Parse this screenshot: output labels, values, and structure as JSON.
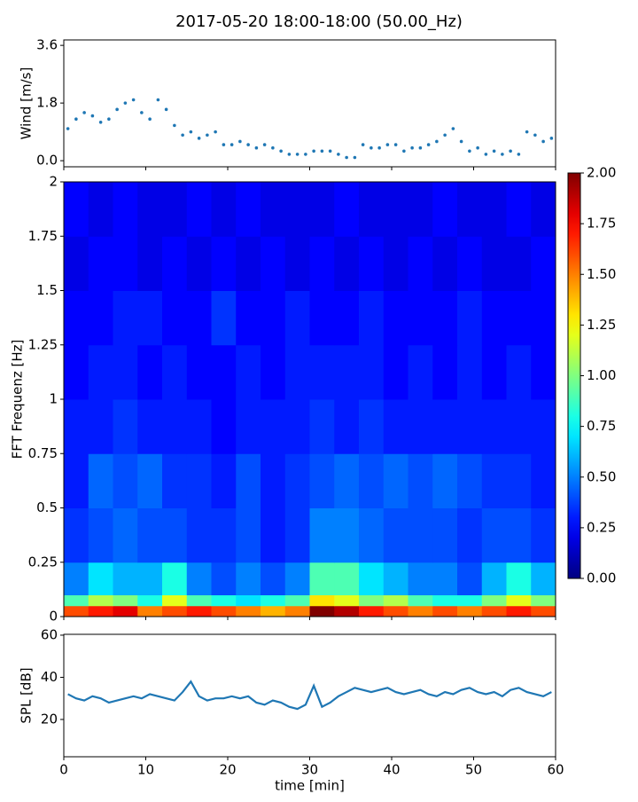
{
  "title": "2017-05-20 18:00-18:00 (50.00_Hz)",
  "chart_data": [
    {
      "type": "scatter",
      "ylabel": "Wind [m/s]",
      "color": "#1f77b4",
      "x": [
        0.5,
        1.5,
        2.5,
        3.5,
        4.5,
        5.5,
        6.5,
        7.5,
        8.5,
        9.5,
        10.5,
        11.5,
        12.5,
        13.5,
        14.5,
        15.5,
        16.5,
        17.5,
        18.5,
        19.5,
        20.5,
        21.5,
        22.5,
        23.5,
        24.5,
        25.5,
        26.5,
        27.5,
        28.5,
        29.5,
        30.5,
        31.5,
        32.5,
        33.5,
        34.5,
        35.5,
        36.5,
        37.5,
        38.5,
        39.5,
        40.5,
        41.5,
        42.5,
        43.5,
        44.5,
        45.5,
        46.5,
        47.5,
        48.5,
        49.5,
        50.5,
        51.5,
        52.5,
        53.5,
        54.5,
        55.5,
        56.5,
        57.5,
        58.5,
        59.5
      ],
      "values": [
        1.0,
        1.3,
        1.5,
        1.4,
        1.2,
        1.3,
        1.6,
        1.8,
        1.9,
        1.5,
        1.3,
        1.9,
        1.6,
        1.1,
        0.8,
        0.9,
        0.7,
        0.8,
        0.9,
        0.5,
        0.5,
        0.6,
        0.5,
        0.4,
        0.5,
        0.4,
        0.3,
        0.2,
        0.2,
        0.2,
        0.3,
        0.3,
        0.3,
        0.2,
        0.1,
        0.1,
        0.5,
        0.4,
        0.4,
        0.5,
        0.5,
        0.3,
        0.4,
        0.4,
        0.5,
        0.6,
        0.8,
        1.0,
        0.6,
        0.3,
        0.4,
        0.2,
        0.3,
        0.2,
        0.3,
        0.2,
        0.9,
        0.8,
        0.6,
        0.7
      ],
      "xlim": [
        0,
        60
      ],
      "xticks": [
        0,
        10,
        20,
        30,
        40,
        50,
        60
      ],
      "ylim": [
        -0.19,
        3.77
      ],
      "yticks": [
        {
          "value": 0,
          "label": "0.0"
        },
        1.8,
        3.6
      ]
    },
    {
      "type": "heatmap",
      "ylabel": "FFT Frequenz [Hz]",
      "colormap": "jet",
      "xbins": [
        0,
        3,
        6,
        9,
        12,
        15,
        18,
        21,
        24,
        27,
        30,
        33,
        36,
        39,
        42,
        45,
        48,
        51,
        54,
        57,
        60
      ],
      "ybins": [
        0,
        0.05,
        0.1,
        0.25,
        0.5,
        0.75,
        1,
        1.25,
        1.5,
        1.75,
        2
      ],
      "values": [
        [
          1.6,
          1.7,
          1.8,
          1.5,
          1.6,
          1.7,
          1.6,
          1.5,
          1.4,
          1.5,
          2.0,
          1.9,
          1.7,
          1.6,
          1.5,
          1.6,
          1.5,
          1.6,
          1.7,
          1.6
        ],
        [
          0.9,
          1.1,
          1.0,
          0.8,
          1.2,
          0.9,
          0.8,
          0.7,
          0.8,
          0.9,
          1.3,
          1.2,
          1.0,
          1.1,
          0.9,
          0.8,
          0.8,
          1.0,
          1.2,
          1.0
        ],
        [
          0.5,
          0.7,
          0.6,
          0.6,
          0.8,
          0.5,
          0.4,
          0.5,
          0.4,
          0.5,
          0.9,
          0.9,
          0.7,
          0.6,
          0.5,
          0.5,
          0.4,
          0.6,
          0.8,
          0.6
        ],
        [
          0.35,
          0.4,
          0.45,
          0.4,
          0.4,
          0.35,
          0.35,
          0.4,
          0.3,
          0.35,
          0.5,
          0.5,
          0.45,
          0.4,
          0.4,
          0.4,
          0.35,
          0.4,
          0.4,
          0.35
        ],
        [
          0.3,
          0.45,
          0.4,
          0.45,
          0.35,
          0.35,
          0.3,
          0.4,
          0.3,
          0.35,
          0.4,
          0.45,
          0.4,
          0.45,
          0.4,
          0.45,
          0.4,
          0.35,
          0.35,
          0.3
        ],
        [
          0.3,
          0.3,
          0.35,
          0.3,
          0.3,
          0.3,
          0.25,
          0.3,
          0.3,
          0.3,
          0.35,
          0.3,
          0.35,
          0.3,
          0.3,
          0.3,
          0.3,
          0.3,
          0.3,
          0.3
        ],
        [
          0.25,
          0.3,
          0.3,
          0.25,
          0.3,
          0.25,
          0.25,
          0.3,
          0.25,
          0.3,
          0.3,
          0.3,
          0.3,
          0.25,
          0.3,
          0.25,
          0.3,
          0.25,
          0.3,
          0.25
        ],
        [
          0.25,
          0.25,
          0.3,
          0.3,
          0.25,
          0.25,
          0.35,
          0.25,
          0.25,
          0.3,
          0.25,
          0.25,
          0.3,
          0.25,
          0.25,
          0.25,
          0.3,
          0.25,
          0.25,
          0.25
        ],
        [
          0.2,
          0.25,
          0.25,
          0.2,
          0.25,
          0.2,
          0.25,
          0.2,
          0.25,
          0.2,
          0.25,
          0.2,
          0.25,
          0.2,
          0.25,
          0.2,
          0.25,
          0.2,
          0.2,
          0.25
        ],
        [
          0.25,
          0.2,
          0.25,
          0.2,
          0.2,
          0.25,
          0.2,
          0.25,
          0.2,
          0.2,
          0.2,
          0.25,
          0.2,
          0.2,
          0.2,
          0.25,
          0.2,
          0.2,
          0.25,
          0.2
        ]
      ],
      "xlim": [
        0,
        60
      ],
      "xticks": [
        0,
        10,
        20,
        30,
        40,
        50,
        60
      ],
      "ylim": [
        0,
        2
      ],
      "yticks": [
        0,
        0.25,
        0.5,
        0.75,
        1,
        1.25,
        1.5,
        1.75,
        2
      ],
      "clim": [
        0,
        2
      ],
      "cticks": [
        {
          "value": 0,
          "label": "0.00"
        },
        {
          "value": 0.25,
          "label": "0.25"
        },
        {
          "value": 0.5,
          "label": "0.50"
        },
        {
          "value": 0.75,
          "label": "0.75"
        },
        {
          "value": 1,
          "label": "1.00"
        },
        {
          "value": 1.25,
          "label": "1.25"
        },
        {
          "value": 1.5,
          "label": "1.50"
        },
        {
          "value": 1.75,
          "label": "1.75"
        },
        {
          "value": 2,
          "label": "2.00"
        }
      ]
    },
    {
      "type": "line",
      "ylabel": "SPL [dB]",
      "xlabel": "time [min]",
      "color": "#1f77b4",
      "x": [
        0.5,
        1.5,
        2.5,
        3.5,
        4.5,
        5.5,
        6.5,
        7.5,
        8.5,
        9.5,
        10.5,
        11.5,
        12.5,
        13.5,
        14.5,
        15.5,
        16.5,
        17.5,
        18.5,
        19.5,
        20.5,
        21.5,
        22.5,
        23.5,
        24.5,
        25.5,
        26.5,
        27.5,
        28.5,
        29.5,
        30.5,
        31.5,
        32.5,
        33.5,
        34.5,
        35.5,
        36.5,
        37.5,
        38.5,
        39.5,
        40.5,
        41.5,
        42.5,
        43.5,
        44.5,
        45.5,
        46.5,
        47.5,
        48.5,
        49.5,
        50.5,
        51.5,
        52.5,
        53.5,
        54.5,
        55.5,
        56.5,
        57.5,
        58.5,
        59.5
      ],
      "values": [
        32,
        30,
        29,
        31,
        30,
        28,
        29,
        30,
        31,
        30,
        32,
        31,
        30,
        29,
        33,
        38,
        31,
        29,
        30,
        30,
        31,
        30,
        31,
        28,
        27,
        29,
        28,
        26,
        25,
        27,
        36,
        26,
        28,
        31,
        33,
        35,
        34,
        33,
        34,
        35,
        33,
        32,
        33,
        34,
        32,
        31,
        33,
        32,
        34,
        35,
        33,
        32,
        33,
        31,
        34,
        35,
        33,
        32,
        31,
        33
      ],
      "xlim": [
        0,
        60
      ],
      "xticks": [
        0,
        10,
        20,
        30,
        40,
        50,
        60
      ],
      "ylim": [
        2.3,
        60.4
      ],
      "yticks": [
        20,
        40,
        60
      ]
    }
  ]
}
